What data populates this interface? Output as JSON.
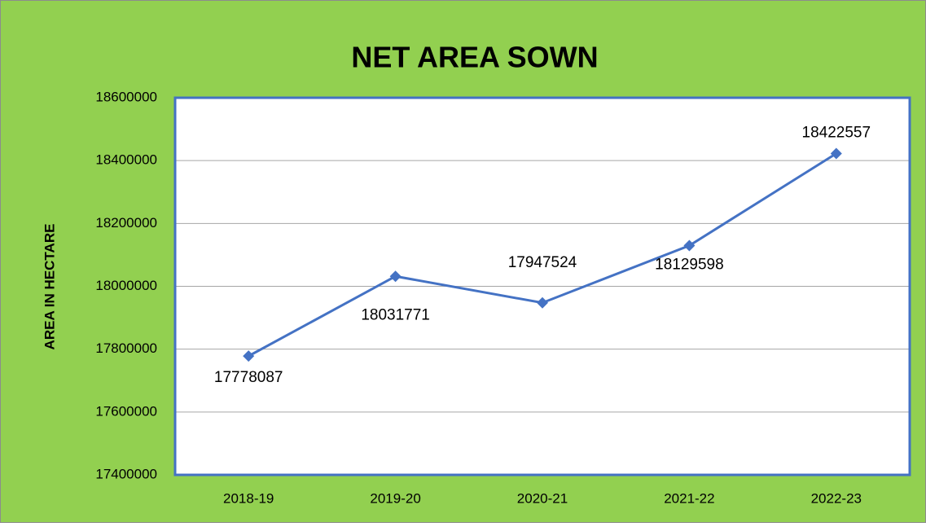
{
  "chart_data": {
    "type": "line",
    "title": "NET AREA SOWN",
    "y_label": "AREA IN HECTARE",
    "categories": [
      "2018-19",
      "2019-20",
      "2020-21",
      "2021-22",
      "2022-23"
    ],
    "series": [
      {
        "name": "Net Area Sown",
        "color": "#4472c4",
        "values": [
          17778087,
          18031771,
          17947524,
          18129598,
          18422557
        ]
      }
    ],
    "ylim": [
      17400000,
      18600000
    ],
    "yticks": [
      17400000,
      17600000,
      17800000,
      18000000,
      18200000,
      18400000,
      18600000
    ],
    "grid": true,
    "background": "#92d050"
  }
}
